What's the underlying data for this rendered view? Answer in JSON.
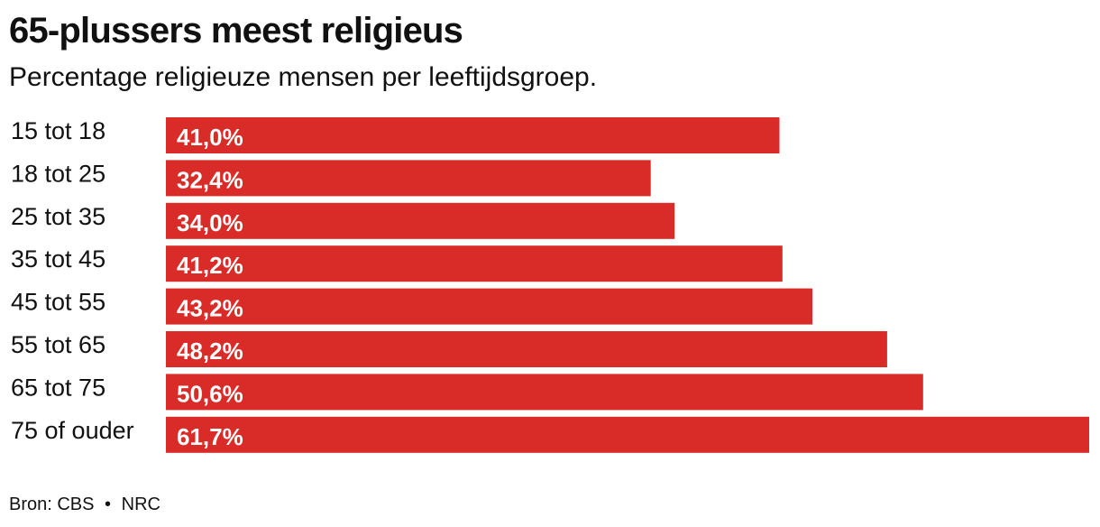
{
  "header": {
    "title": "65-plussers meest religieus",
    "subtitle": "Percentage religieuze mensen per leeftijdsgroep."
  },
  "footer": {
    "source": "Bron: CBS",
    "separator": "•",
    "publisher": "NRC"
  },
  "colors": {
    "bar": "#d92b27",
    "text": "#111111",
    "value_text": "#ffffff"
  },
  "chart_data": {
    "type": "bar",
    "orientation": "horizontal",
    "title": "65-plussers meest religieus",
    "subtitle": "Percentage religieuze mensen per leeftijdsgroep.",
    "xlabel": "",
    "ylabel": "",
    "categories": [
      "15 tot 18",
      "18 tot 25",
      "25 tot 35",
      "35 tot 45",
      "45 tot 55",
      "55 tot 65",
      "65 tot 75",
      "75 of ouder"
    ],
    "values": [
      41.0,
      32.4,
      34.0,
      41.2,
      43.2,
      48.2,
      50.6,
      61.7
    ],
    "value_labels": [
      "41,0%",
      "32,4%",
      "34,0%",
      "41,2%",
      "43,2%",
      "48,2%",
      "50,6%",
      "61,7%"
    ],
    "xlim": [
      0,
      61.7
    ],
    "grid": false,
    "legend": "none"
  }
}
